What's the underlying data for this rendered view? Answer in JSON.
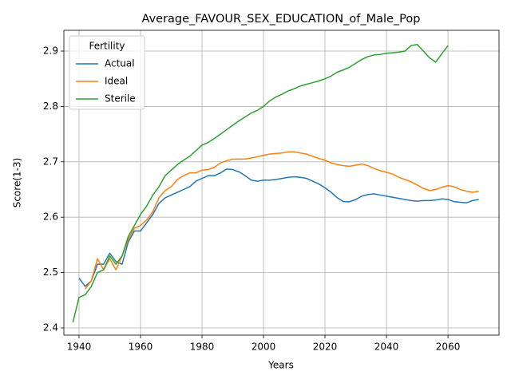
{
  "chart_data": {
    "type": "line",
    "title": "Average_FAVOUR_SEX_EDUCATION_of_Male_Pop",
    "xlabel": "Years",
    "ylabel": "Score(1-3)",
    "legend_title": "Fertility",
    "legend": "upper left",
    "grid": true,
    "x": [
      1938,
      1940,
      1942,
      1944,
      1946,
      1948,
      1950,
      1952,
      1954,
      1956,
      1958,
      1960,
      1962,
      1964,
      1966,
      1968,
      1970,
      1972,
      1974,
      1976,
      1978,
      1980,
      1982,
      1984,
      1986,
      1988,
      1990,
      1992,
      1994,
      1996,
      1998,
      2000,
      2002,
      2004,
      2006,
      2008,
      2010,
      2012,
      2014,
      2016,
      2018,
      2020,
      2022,
      2024,
      2026,
      2028,
      2030,
      2032,
      2034,
      2036,
      2038,
      2040,
      2042,
      2044,
      2046,
      2048,
      2050,
      2052,
      2054,
      2056,
      2058,
      2060,
      2062,
      2064,
      2066,
      2068,
      2070
    ],
    "series": [
      {
        "name": "Actual",
        "color": "#1f77b4",
        "values": [
          null,
          2.49,
          2.475,
          2.485,
          2.515,
          2.515,
          2.535,
          2.52,
          2.515,
          2.555,
          2.575,
          2.575,
          2.59,
          2.605,
          2.625,
          2.635,
          2.64,
          2.645,
          2.65,
          2.655,
          2.665,
          2.67,
          2.675,
          2.675,
          2.68,
          2.687,
          2.686,
          2.682,
          2.675,
          2.667,
          2.665,
          2.667,
          2.667,
          2.668,
          2.67,
          2.672,
          2.673,
          2.672,
          2.67,
          2.665,
          2.66,
          2.653,
          2.645,
          2.635,
          2.628,
          2.628,
          2.632,
          2.638,
          2.641,
          2.642,
          2.64,
          2.638,
          2.636,
          2.634,
          2.632,
          2.63,
          2.629,
          2.63,
          2.63,
          2.631,
          2.633,
          2.632,
          2.628,
          2.627,
          2.626,
          2.63,
          2.632
        ]
      },
      {
        "name": "Ideal",
        "color": "#ff7f0e",
        "values": [
          null,
          null,
          2.47,
          2.485,
          2.525,
          2.505,
          2.525,
          2.505,
          2.53,
          2.56,
          2.58,
          2.585,
          2.595,
          2.61,
          2.635,
          2.648,
          2.655,
          2.668,
          2.675,
          2.68,
          2.68,
          2.685,
          2.686,
          2.69,
          2.698,
          2.702,
          2.705,
          2.705,
          2.705,
          2.707,
          2.709,
          2.712,
          2.714,
          2.715,
          2.716,
          2.718,
          2.718,
          2.716,
          2.714,
          2.71,
          2.706,
          2.703,
          2.698,
          2.695,
          2.693,
          2.692,
          2.694,
          2.696,
          2.693,
          2.688,
          2.684,
          2.681,
          2.678,
          2.672,
          2.668,
          2.664,
          2.658,
          2.652,
          2.648,
          2.65,
          2.654,
          2.657,
          2.655,
          2.65,
          2.647,
          2.645,
          2.647
        ]
      },
      {
        "name": "Sterile",
        "color": "#2ca02c",
        "values": [
          2.41,
          2.455,
          2.46,
          2.475,
          2.5,
          2.505,
          2.53,
          2.515,
          2.53,
          2.565,
          2.585,
          2.605,
          2.62,
          2.64,
          2.655,
          2.675,
          2.685,
          2.695,
          2.703,
          2.71,
          2.72,
          2.73,
          2.735,
          2.742,
          2.75,
          2.758,
          2.766,
          2.774,
          2.781,
          2.788,
          2.793,
          2.8,
          2.81,
          2.817,
          2.822,
          2.828,
          2.832,
          2.837,
          2.84,
          2.843,
          2.846,
          2.85,
          2.855,
          2.862,
          2.866,
          2.871,
          2.878,
          2.885,
          2.89,
          2.893,
          2.894,
          2.896,
          2.897,
          2.898,
          2.9,
          2.91,
          2.912,
          2.9,
          2.888,
          2.88,
          2.895,
          2.91,
          null,
          null,
          null,
          null,
          null
        ]
      }
    ],
    "xlim": [
      1935.07,
      2076.6
    ],
    "xticks": [
      1940,
      1960,
      1980,
      2000,
      2020,
      2040,
      2060
    ],
    "ylim": [
      2.387,
      2.9375
    ],
    "yticks": [
      2.4,
      2.5,
      2.6,
      2.7,
      2.8,
      2.9
    ]
  }
}
